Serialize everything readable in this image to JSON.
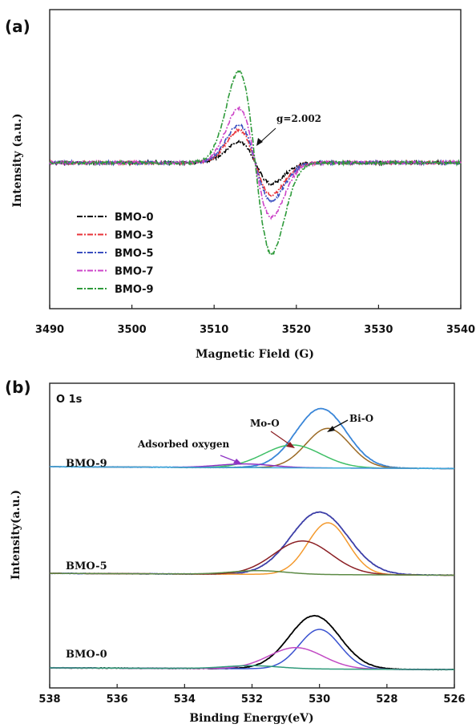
{
  "chart_data": [
    {
      "panel": "(a)",
      "type": "line",
      "xlabel": "Magnetic Field (G)",
      "ylabel": "Intensity (a.u.)",
      "xlim": [
        3490,
        3540
      ],
      "xticks": [
        3490,
        3500,
        3510,
        3520,
        3530,
        3540
      ],
      "annotation": "g=2.002",
      "annotation_x": 3515,
      "legend_position": "lower-left",
      "series": [
        {
          "name": "BMO-0",
          "color": "#000000",
          "peak_x": 3513.3,
          "peak_y": 0.2,
          "trough_x": 3516.7,
          "trough_y": -0.18
        },
        {
          "name": "BMO-3",
          "color": "#e8333a",
          "peak_x": 3513.3,
          "peak_y": 0.31,
          "trough_x": 3516.7,
          "trough_y": -0.33
        },
        {
          "name": "BMO-5",
          "color": "#3a4fc0",
          "peak_x": 3513.3,
          "peak_y": 0.36,
          "trough_x": 3516.7,
          "trough_y": -0.37
        },
        {
          "name": "BMO-7",
          "color": "#cc44c8",
          "peak_x": 3513.3,
          "peak_y": 0.52,
          "trough_x": 3516.7,
          "trough_y": -0.5
        },
        {
          "name": "BMO-9",
          "color": "#2e9a3a",
          "peak_x": 3513.3,
          "peak_y": 0.87,
          "trough_x": 3516.7,
          "trough_y": -0.86
        }
      ]
    },
    {
      "panel": "(b)",
      "type": "line",
      "title": "O 1s",
      "xlabel": "Binding Energy(eV)",
      "ylabel": "Intensity(a.u.)",
      "xlim": [
        538,
        526
      ],
      "xticks": [
        538,
        536,
        534,
        532,
        530,
        528,
        526
      ],
      "annotations": [
        "Adsorbed oxygen",
        "Mo-O",
        "Bi-O"
      ],
      "groups": [
        {
          "label": "BMO-9",
          "baseline": 0.72,
          "components": [
            {
              "role": "envelope",
              "color": "#3a86d8",
              "center": 529.95,
              "height": 0.195,
              "sigma": 0.75
            },
            {
              "role": "Bi-O",
              "color": "#9b6a25",
              "center": 529.75,
              "height": 0.13,
              "sigma": 0.65
            },
            {
              "role": "Mo-O",
              "color": "#3fbf67",
              "center": 530.8,
              "height": 0.075,
              "sigma": 0.85
            },
            {
              "role": "Adsorbed oxygen",
              "color": "#8e33c4",
              "center": 532.2,
              "height": 0.012,
              "sigma": 0.8
            },
            {
              "role": "baseline",
              "color": "#3fa8d8",
              "center": 532.0,
              "height": 0.0,
              "sigma": 1.0
            }
          ]
        },
        {
          "label": "BMO-5",
          "baseline": 0.37,
          "components": [
            {
              "role": "envelope",
              "color": "#3d3fa8",
              "center": 530.0,
              "height": 0.205,
              "sigma": 0.85
            },
            {
              "role": "Bi-O",
              "color": "#f49a2e",
              "center": 529.75,
              "height": 0.17,
              "sigma": 0.6
            },
            {
              "role": "Mo-O",
              "color": "#8b1f24",
              "center": 530.5,
              "height": 0.11,
              "sigma": 0.85
            },
            {
              "role": "Adsorbed oxygen",
              "color": "#5c8a45",
              "center": 531.8,
              "height": 0.012,
              "sigma": 0.8
            }
          ]
        },
        {
          "label": "BMO-0",
          "baseline": 0.06,
          "components": [
            {
              "role": "envelope",
              "color": "#000000",
              "center": 530.15,
              "height": 0.175,
              "sigma": 0.75
            },
            {
              "role": "Bi-O",
              "color": "#3a52d0",
              "center": 530.0,
              "height": 0.13,
              "sigma": 0.6
            },
            {
              "role": "Mo-O",
              "color": "#c24ac4",
              "center": 530.7,
              "height": 0.07,
              "sigma": 0.8
            },
            {
              "role": "Adsorbed oxygen",
              "color": "#2f9a7a",
              "center": 532.0,
              "height": 0.01,
              "sigma": 0.8
            }
          ]
        }
      ]
    }
  ]
}
